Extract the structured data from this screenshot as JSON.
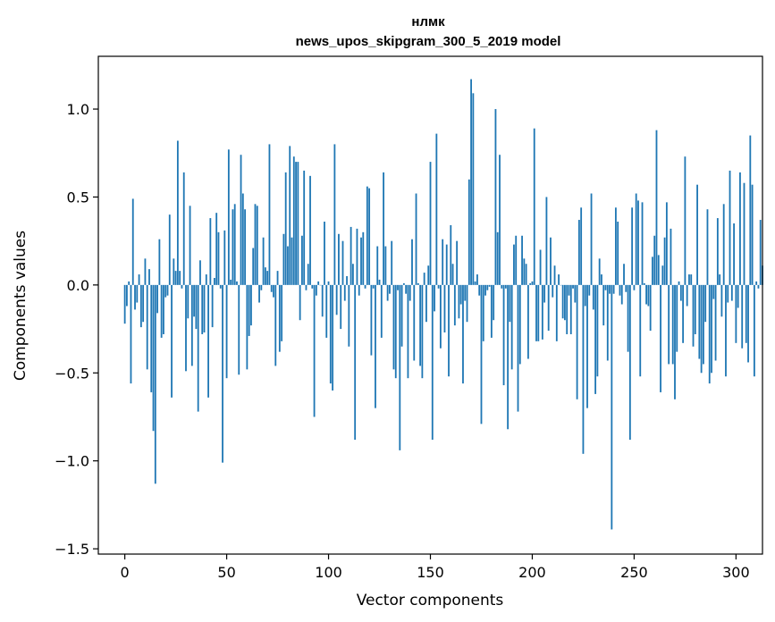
{
  "chart_data": {
    "type": "bar",
    "title": "нлмк",
    "subtitle": "news_upos_skipgram_300_5_2019 model",
    "xlabel": "Vector components",
    "ylabel": "Components values",
    "xlim": [
      -13,
      313
    ],
    "ylim": [
      -1.53,
      1.3
    ],
    "xticks": [
      0,
      50,
      100,
      150,
      200,
      250,
      300
    ],
    "yticks": [
      -1.5,
      -1.0,
      -0.5,
      0.0,
      0.5,
      1.0
    ],
    "ytick_labels": [
      "−1.5",
      "−1.0",
      "−0.5",
      "0.0",
      "0.5",
      "1.0"
    ],
    "grid": false,
    "legend": "none",
    "bar_color": "#1f77b4",
    "values": [
      -0.22,
      -0.12,
      0.02,
      -0.56,
      0.49,
      -0.14,
      -0.1,
      0.06,
      -0.24,
      -0.21,
      0.15,
      -0.48,
      0.09,
      -0.61,
      -0.83,
      -1.13,
      -0.16,
      0.26,
      -0.3,
      -0.28,
      -0.07,
      -0.06,
      0.4,
      -0.64,
      0.15,
      0.08,
      0.82,
      0.08,
      -0.02,
      0.64,
      -0.49,
      -0.19,
      0.45,
      -0.46,
      -0.18,
      -0.25,
      -0.72,
      0.14,
      -0.28,
      -0.27,
      0.06,
      -0.64,
      0.38,
      -0.24,
      0.04,
      0.41,
      0.3,
      -0.02,
      -1.01,
      0.31,
      -0.53,
      0.77,
      0.03,
      0.43,
      0.46,
      0.02,
      -0.51,
      0.74,
      0.52,
      0.43,
      -0.48,
      -0.29,
      -0.23,
      0.21,
      0.46,
      0.45,
      -0.1,
      -0.03,
      0.27,
      0.1,
      0.08,
      0.8,
      -0.04,
      -0.07,
      -0.46,
      0.08,
      -0.38,
      -0.32,
      0.29,
      0.64,
      0.22,
      0.79,
      0.27,
      0.73,
      0.7,
      0.7,
      -0.2,
      0.28,
      0.65,
      -0.03,
      0.12,
      0.62,
      -0.02,
      -0.75,
      -0.06,
      0.02,
      0.0,
      -0.18,
      0.36,
      -0.3,
      0.02,
      -0.56,
      -0.6,
      0.8,
      -0.17,
      0.29,
      -0.25,
      0.25,
      -0.09,
      0.05,
      -0.35,
      0.33,
      0.12,
      -0.88,
      0.32,
      -0.06,
      0.27,
      0.3,
      -0.02,
      0.56,
      0.55,
      -0.4,
      -0.02,
      -0.7,
      0.22,
      0.03,
      -0.3,
      0.64,
      0.22,
      -0.09,
      -0.05,
      0.25,
      -0.48,
      -0.53,
      -0.03,
      -0.94,
      -0.35,
      0.01,
      -0.05,
      -0.53,
      -0.09,
      0.26,
      -0.43,
      0.52,
      0.01,
      -0.46,
      -0.53,
      0.07,
      -0.21,
      0.11,
      0.7,
      -0.88,
      -0.15,
      0.86,
      -0.02,
      -0.36,
      0.26,
      -0.27,
      0.23,
      -0.52,
      0.34,
      0.12,
      -0.23,
      0.25,
      -0.19,
      -0.11,
      -0.56,
      -0.09,
      -0.21,
      0.6,
      1.17,
      1.09,
      0.02,
      0.06,
      -0.06,
      -0.79,
      -0.32,
      -0.06,
      -0.03,
      -0.01,
      -0.3,
      -0.2,
      1.0,
      0.3,
      0.74,
      -0.02,
      -0.57,
      -0.02,
      -0.82,
      -0.21,
      -0.48,
      0.23,
      0.28,
      -0.72,
      -0.45,
      0.28,
      0.15,
      0.12,
      -0.42,
      0.01,
      0.02,
      0.89,
      -0.32,
      -0.32,
      0.2,
      -0.31,
      -0.1,
      0.5,
      -0.26,
      0.27,
      -0.07,
      0.11,
      -0.32,
      0.06,
      0.0,
      -0.19,
      -0.2,
      -0.28,
      -0.06,
      -0.28,
      -0.02,
      -0.1,
      -0.65,
      0.37,
      0.44,
      -0.96,
      -0.12,
      -0.7,
      -0.06,
      0.52,
      -0.14,
      -0.62,
      -0.52,
      0.15,
      0.06,
      -0.23,
      -0.03,
      -0.43,
      -0.05,
      -1.39,
      -0.05,
      0.44,
      0.36,
      -0.06,
      -0.11,
      0.12,
      -0.04,
      -0.38,
      -0.88,
      0.44,
      -0.03,
      0.52,
      0.48,
      -0.52,
      0.47,
      0.01,
      -0.11,
      -0.12,
      -0.26,
      0.16,
      0.28,
      0.88,
      0.17,
      -0.61,
      0.11,
      0.27,
      0.47,
      -0.45,
      0.32,
      -0.45,
      -0.65,
      -0.38,
      0.02,
      -0.09,
      -0.33,
      0.73,
      -0.12,
      0.06,
      0.06,
      -0.35,
      -0.28,
      0.57,
      -0.42,
      -0.5,
      -0.45,
      -0.21,
      0.43,
      -0.56,
      -0.5,
      -0.08,
      -0.43,
      0.38,
      0.06,
      -0.18,
      0.46,
      -0.52,
      -0.1,
      0.65,
      -0.09,
      0.35,
      -0.33,
      -0.13,
      0.64,
      -0.36,
      0.58,
      -0.33,
      -0.44,
      0.85,
      0.57,
      -0.52,
      0.02,
      -0.02,
      0.37,
      0.11
    ]
  }
}
